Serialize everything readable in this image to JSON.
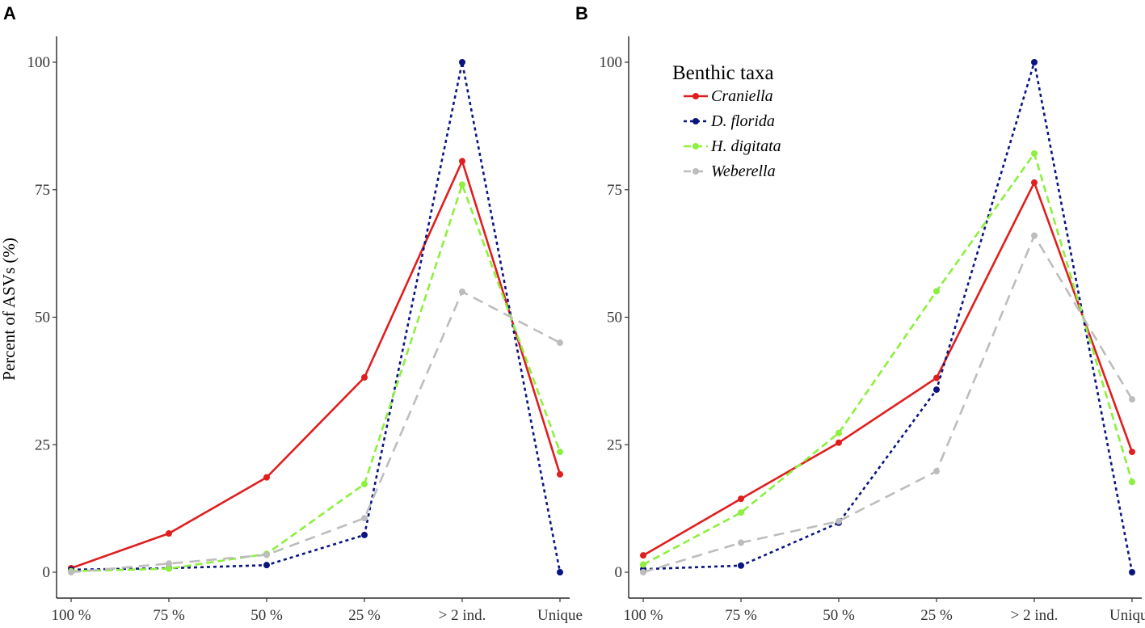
{
  "chart_data": [
    {
      "type": "line",
      "panel_label": "A",
      "ylabel": "Percent of ASVs (%)",
      "xlabel": "",
      "categories": [
        "100 %",
        "75 %",
        "50 %",
        "25 %",
        "> 2 ind.",
        "Unique"
      ],
      "y_ticks": [
        "0",
        "25",
        "50",
        "75",
        "100"
      ],
      "ylim": [
        0,
        100
      ],
      "series": [
        {
          "name": "Craniella",
          "color": "#e01e1e",
          "dash": "solid",
          "values": [
            0.8,
            7.6,
            18.6,
            38.2,
            80.6,
            19.2
          ]
        },
        {
          "name": "D. florida",
          "color": "#0a1480",
          "dash": "dotted",
          "values": [
            0.5,
            0.8,
            1.4,
            7.3,
            100,
            0
          ]
        },
        {
          "name": "H. digitata",
          "color": "#8cf03c",
          "dash": "dashed",
          "values": [
            0.2,
            0.7,
            3.6,
            17.3,
            76,
            23.6
          ]
        },
        {
          "name": "Weberella",
          "color": "#bdbdbd",
          "dash": "longdash",
          "values": [
            0,
            1.7,
            3.4,
            10.6,
            55,
            45
          ]
        }
      ],
      "legend": null,
      "grid": false
    },
    {
      "type": "line",
      "panel_label": "B",
      "ylabel": "",
      "xlabel": "",
      "categories": [
        "100 %",
        "75 %",
        "50 %",
        "25 %",
        "> 2 ind.",
        "Unique"
      ],
      "y_ticks": [
        "0",
        "25",
        "50",
        "75",
        "100"
      ],
      "ylim": [
        0,
        100
      ],
      "series": [
        {
          "name": "Craniella",
          "color": "#e01e1e",
          "dash": "solid",
          "values": [
            3.3,
            14.4,
            25.4,
            38.1,
            76.4,
            23.6
          ]
        },
        {
          "name": "D. florida",
          "color": "#0a1480",
          "dash": "dotted",
          "values": [
            0.6,
            1.3,
            9.7,
            35.8,
            100,
            0
          ]
        },
        {
          "name": "H. digitata",
          "color": "#8cf03c",
          "dash": "dashed",
          "values": [
            1.5,
            11.7,
            27.3,
            55.1,
            82.1,
            17.7
          ]
        },
        {
          "name": "Weberella",
          "color": "#bdbdbd",
          "dash": "longdash",
          "values": [
            0,
            5.8,
            10,
            19.8,
            66,
            33.9
          ]
        }
      ],
      "legend": {
        "title": "Benthic taxa",
        "position": "top-left",
        "entries": [
          "Craniella",
          "D. florida",
          "H. digitata",
          "Weberella"
        ]
      },
      "grid": false
    }
  ]
}
